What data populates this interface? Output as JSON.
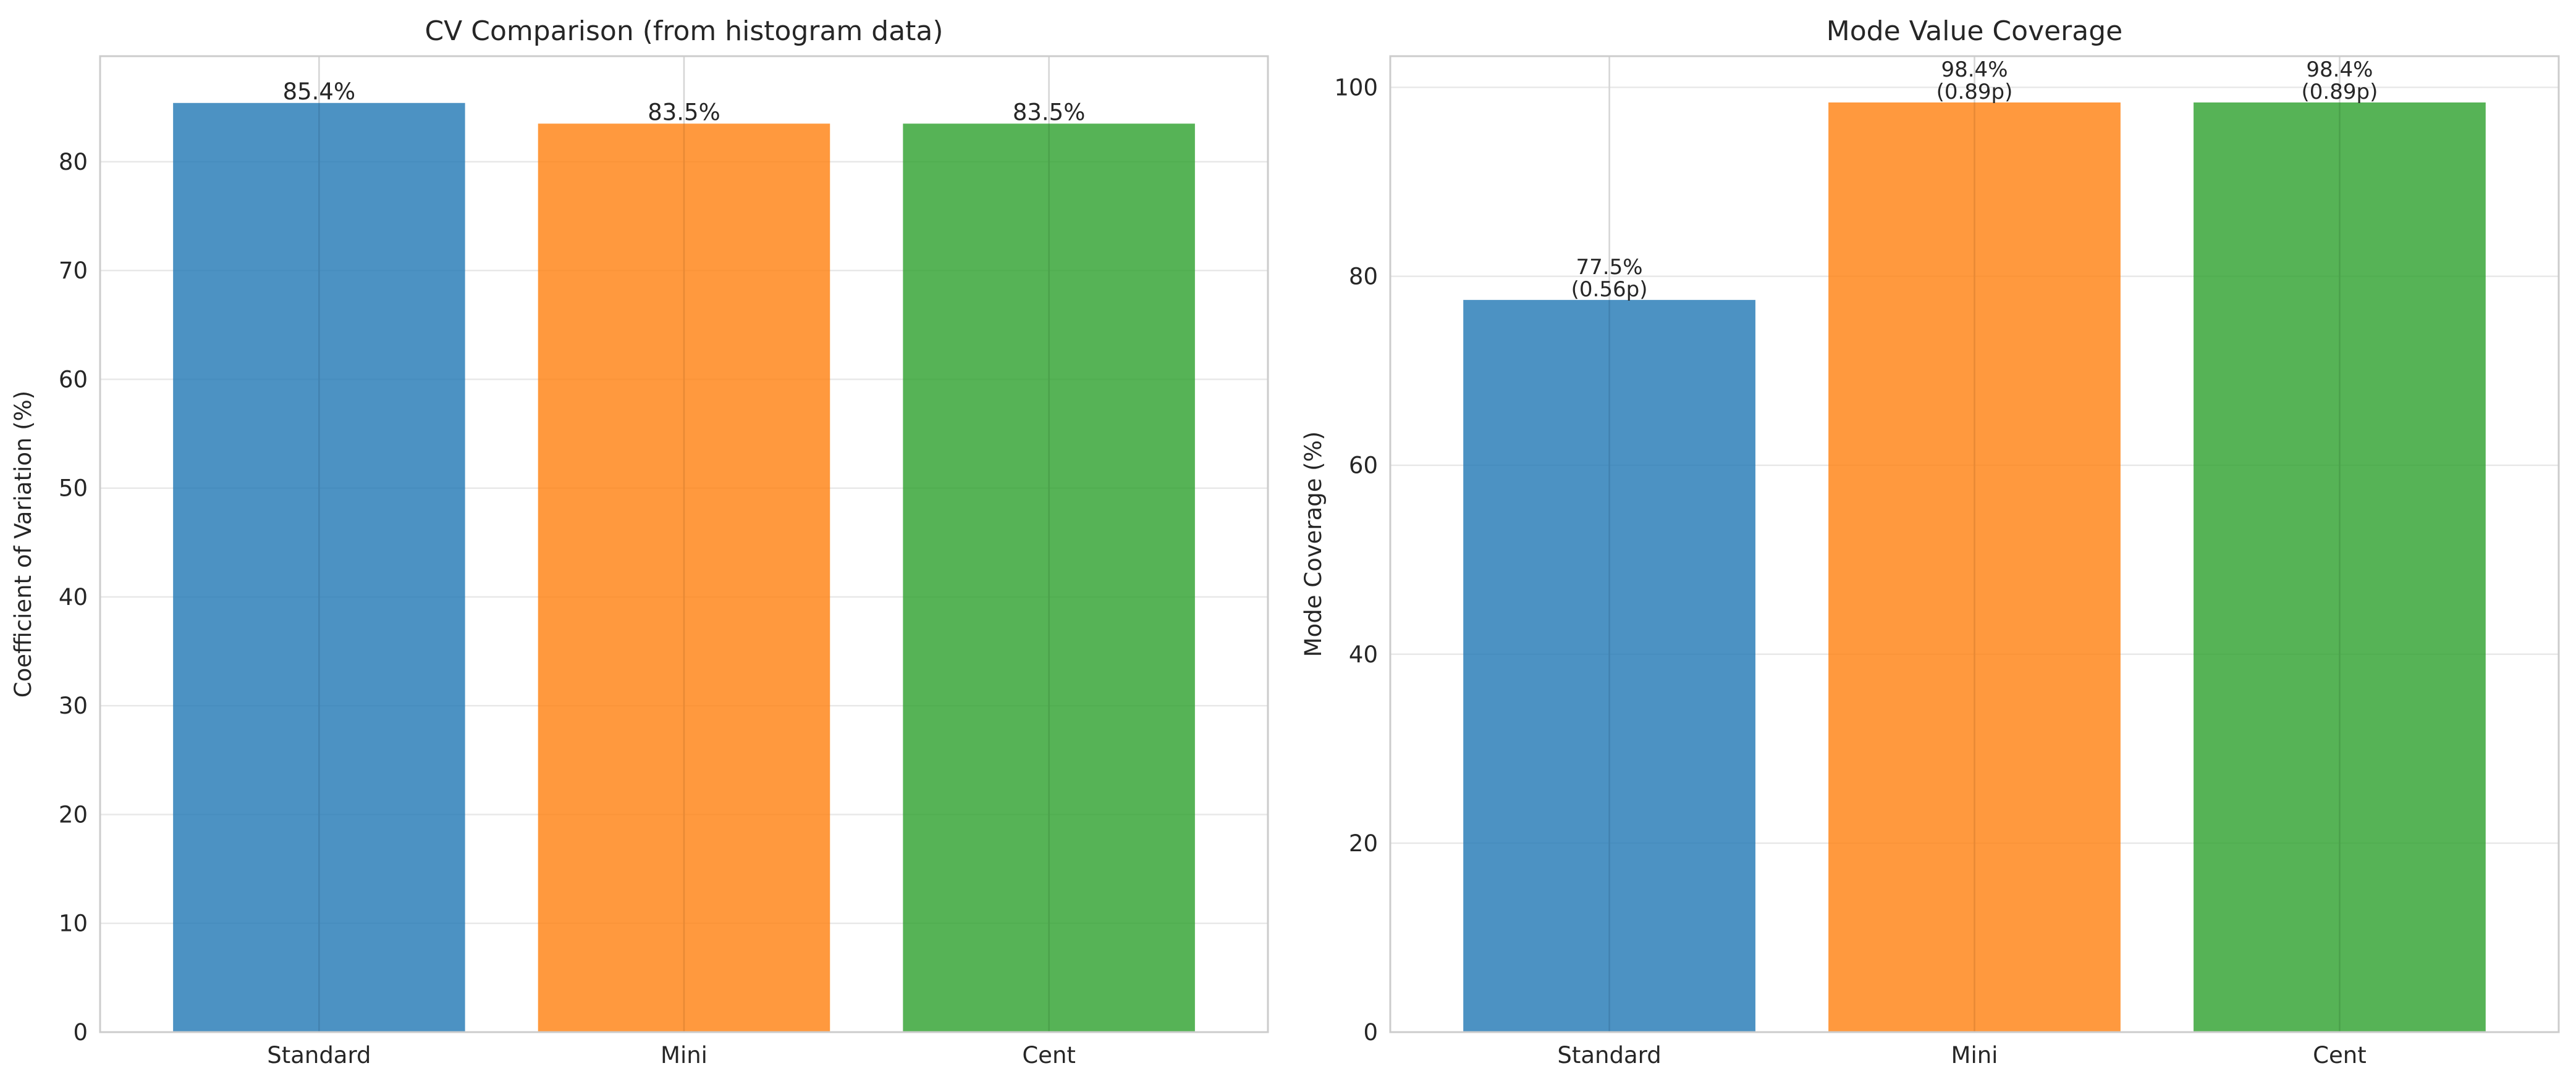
{
  "colors": {
    "Standard": "#1f77b4",
    "Mini": "#ff7f0e",
    "Cent": "#2ca02c"
  },
  "chart_data": [
    {
      "type": "bar",
      "title": "CV Comparison (from histogram data)",
      "xlabel": "",
      "ylabel": "Coefficient of Variation (%)",
      "categories": [
        "Standard",
        "Mini",
        "Cent"
      ],
      "values": [
        85.4,
        83.5,
        83.5
      ],
      "data_labels": [
        "85.4%",
        "83.5%",
        "83.5%"
      ],
      "ylim": [
        0,
        89.7
      ],
      "yticks": [
        0,
        10,
        20,
        30,
        40,
        50,
        60,
        70,
        80
      ],
      "grid": true
    },
    {
      "type": "bar",
      "title": "Mode Value Coverage",
      "xlabel": "",
      "ylabel": "Mode Coverage (%)",
      "categories": [
        "Standard",
        "Mini",
        "Cent"
      ],
      "values": [
        77.5,
        98.4,
        98.4
      ],
      "data_labels": [
        "77.5%\n(0.56p)",
        "98.4%\n(0.89p)",
        "98.4%\n(0.89p)"
      ],
      "ylim": [
        0,
        103.3
      ],
      "yticks": [
        0,
        20,
        40,
        60,
        80,
        100
      ],
      "grid": true
    }
  ]
}
